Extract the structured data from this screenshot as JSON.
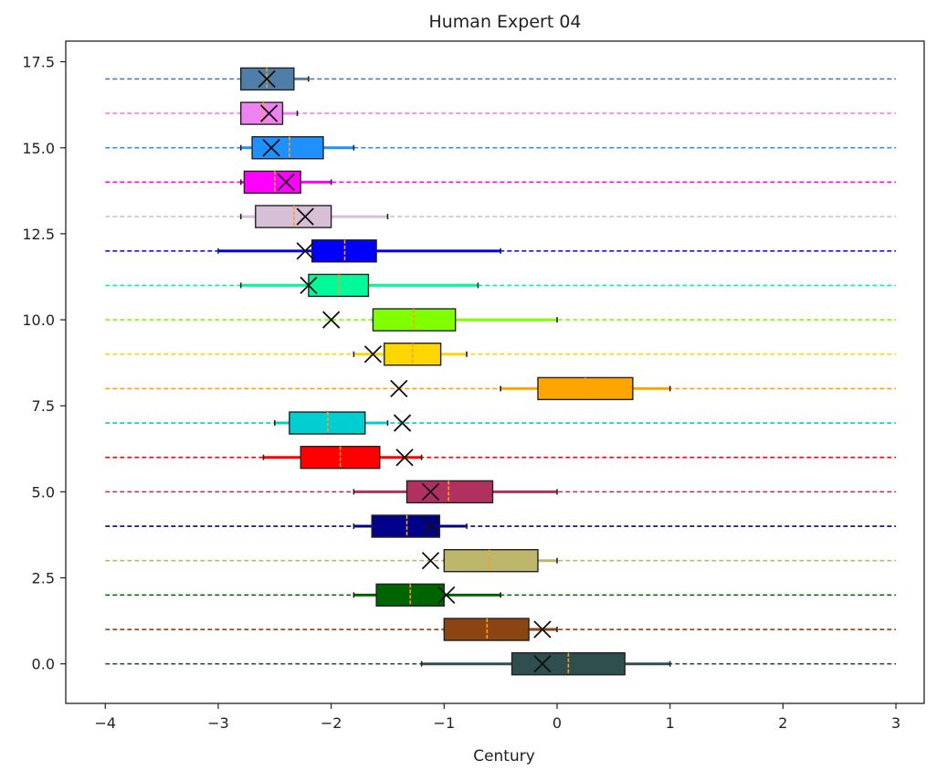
{
  "chart_data": {
    "type": "boxplot",
    "title": "Human Expert 04",
    "xlabel": "Century",
    "ylabel": "",
    "xlim": [
      -4.35,
      3.25
    ],
    "ylim": [
      -1.15,
      18.1
    ],
    "xticks": [
      -4,
      -3,
      -2,
      -1,
      0,
      1,
      2,
      3
    ],
    "yticks": [
      0.0,
      2.5,
      5.0,
      7.5,
      10.0,
      12.5,
      15.0,
      17.5
    ],
    "xtick_labels": [
      "−4",
      "−3",
      "−2",
      "−1",
      "0",
      "1",
      "2",
      "3"
    ],
    "ytick_labels": [
      "0.0",
      "2.5",
      "5.0",
      "7.5",
      "10.0",
      "12.5",
      "15.0",
      "17.5"
    ],
    "guide_range": [
      -4,
      3
    ],
    "grid": false,
    "series": [
      {
        "y": 0,
        "color": "#2f4f4f",
        "whisker_low": -1.2,
        "q1": -0.4,
        "median": 0.1,
        "q3": 0.6,
        "whisker_high": 1.0,
        "mean": -0.13
      },
      {
        "y": 1,
        "color": "#8b4513",
        "whisker_low": -1.0,
        "q1": -1.0,
        "median": -0.62,
        "q3": -0.25,
        "whisker_high": 0.0,
        "mean": -0.13
      },
      {
        "y": 2,
        "color": "#006400",
        "whisker_low": -1.8,
        "q1": -1.6,
        "median": -1.3,
        "q3": -1.0,
        "whisker_high": -0.5,
        "mean": -0.98
      },
      {
        "y": 3,
        "color": "#bdb76b",
        "whisker_low": -1.0,
        "q1": -1.0,
        "median": -0.6,
        "q3": -0.17,
        "whisker_high": 0.0,
        "mean": -1.12
      },
      {
        "y": 4,
        "color": "#00008b",
        "whisker_low": -1.8,
        "q1": -1.64,
        "median": -1.33,
        "q3": -1.04,
        "whisker_high": -0.8,
        "mean": -1.12
      },
      {
        "y": 5,
        "color": "#b03060",
        "whisker_low": -1.8,
        "q1": -1.33,
        "median": -0.96,
        "q3": -0.57,
        "whisker_high": 0.0,
        "mean": -1.12
      },
      {
        "y": 6,
        "color": "#ff0000",
        "whisker_low": -2.6,
        "q1": -2.27,
        "median": -1.92,
        "q3": -1.57,
        "whisker_high": -1.2,
        "mean": -1.35
      },
      {
        "y": 7,
        "color": "#00ced1",
        "whisker_low": -2.5,
        "q1": -2.37,
        "median": -2.03,
        "q3": -1.7,
        "whisker_high": -1.5,
        "mean": -1.37
      },
      {
        "y": 8,
        "color": "#ffa500",
        "whisker_low": -0.5,
        "q1": -0.17,
        "median": 0.25,
        "q3": 0.67,
        "whisker_high": 1.0,
        "mean": -1.4
      },
      {
        "y": 9,
        "color": "#ffd700",
        "whisker_low": -1.8,
        "q1": -1.53,
        "median": -1.28,
        "q3": -1.03,
        "whisker_high": -0.8,
        "mean": -1.63
      },
      {
        "y": 10,
        "color": "#7fff00",
        "whisker_low": -1.63,
        "q1": -1.63,
        "median": -1.27,
        "q3": -0.9,
        "whisker_high": 0.0,
        "mean": -2.0
      },
      {
        "y": 11,
        "color": "#00fa9a",
        "whisker_low": -2.8,
        "q1": -2.2,
        "median": -1.93,
        "q3": -1.67,
        "whisker_high": -0.7,
        "mean": -2.2
      },
      {
        "y": 12,
        "color": "#0000ff",
        "whisker_low": -3.0,
        "q1": -2.17,
        "median": -1.88,
        "q3": -1.6,
        "whisker_high": -0.5,
        "mean": -2.23
      },
      {
        "y": 13,
        "color": "#d8bfd8",
        "whisker_low": -2.8,
        "q1": -2.67,
        "median": -2.33,
        "q3": -2.0,
        "whisker_high": -1.5,
        "mean": -2.23
      },
      {
        "y": 14,
        "color": "#ff00ff",
        "whisker_low": -2.8,
        "q1": -2.77,
        "median": -2.5,
        "q3": -2.27,
        "whisker_high": -2.0,
        "mean": -2.4
      },
      {
        "y": 15,
        "color": "#1e90ff",
        "whisker_low": -2.8,
        "q1": -2.7,
        "median": -2.37,
        "q3": -2.07,
        "whisker_high": -1.8,
        "mean": -2.53
      },
      {
        "y": 16,
        "color": "#ee82ee",
        "whisker_low": -2.8,
        "q1": -2.8,
        "median": -2.6,
        "q3": -2.43,
        "whisker_high": -2.3,
        "mean": -2.55
      },
      {
        "y": 17,
        "color": "#4f7fa8",
        "whisker_low": -2.8,
        "q1": -2.8,
        "median": -2.57,
        "q3": -2.33,
        "whisker_high": -2.2,
        "mean": -2.57
      }
    ]
  }
}
